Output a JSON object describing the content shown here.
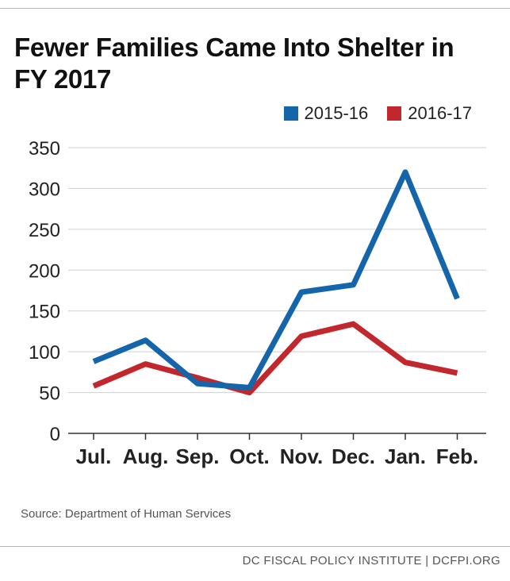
{
  "title": "Fewer Families Came Into Shelter in FY 2017",
  "source": "Source: Department of Human Services",
  "footer": "DC FISCAL POLICY INSTITUTE | DCFPI.ORG",
  "chart_data": {
    "type": "line",
    "title": "Fewer Families Came Into Shelter in FY 2017",
    "xlabel": "",
    "ylabel": "",
    "categories": [
      "Jul.",
      "Aug.",
      "Sep.",
      "Oct.",
      "Nov.",
      "Dec.",
      "Jan.",
      "Feb."
    ],
    "ylim": [
      0,
      350
    ],
    "yticks": [
      0,
      50,
      100,
      150,
      200,
      250,
      300,
      350
    ],
    "grid": true,
    "legend_position": "top-right",
    "series": [
      {
        "name": "2015-16",
        "color": "#1565ab",
        "values": [
          88,
          114,
          61,
          56,
          173,
          182,
          320,
          165
        ]
      },
      {
        "name": "2016-17",
        "color": "#c1272d",
        "values": [
          58,
          85,
          68,
          50,
          119,
          134,
          87,
          74
        ]
      }
    ]
  }
}
